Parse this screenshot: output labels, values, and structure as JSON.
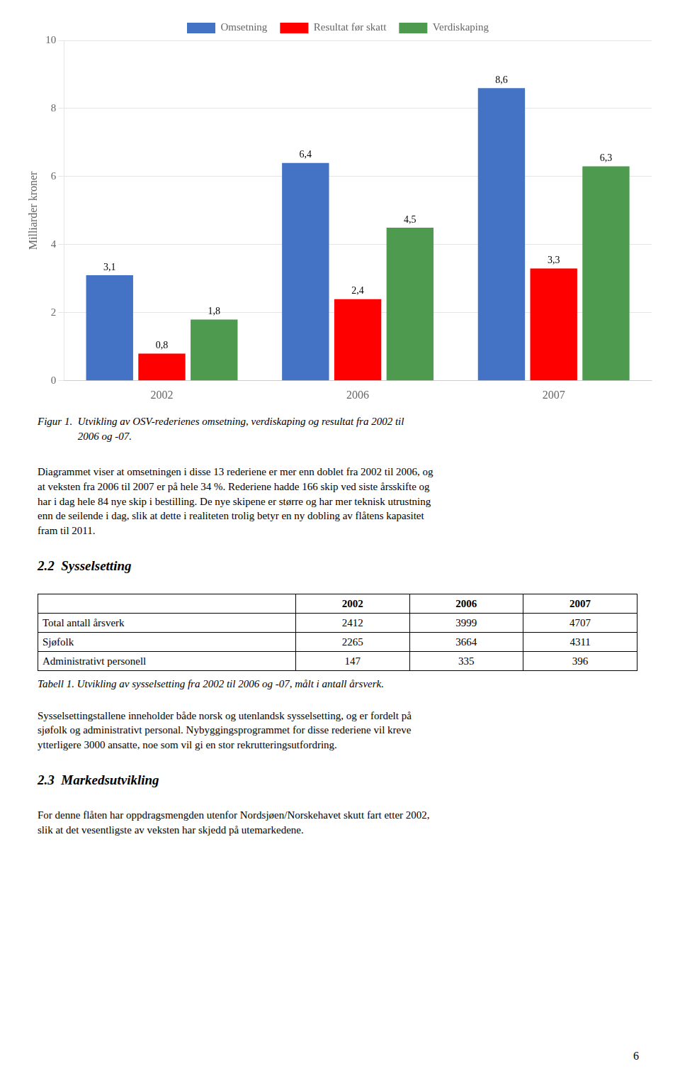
{
  "chart_data": {
    "type": "bar",
    "categories": [
      "2002",
      "2006",
      "2007"
    ],
    "series": [
      {
        "name": "Omsetning",
        "color": "#4472C4",
        "values": [
          3.1,
          6.4,
          8.6
        ],
        "value_labels": [
          "3,1",
          "6,4",
          "8,6"
        ]
      },
      {
        "name": "Resultat før skatt",
        "color": "#FF0000",
        "values": [
          0.8,
          2.4,
          3.3
        ],
        "value_labels": [
          "0,8",
          "2,4",
          "3,3"
        ]
      },
      {
        "name": "Verdiskaping",
        "color": "#4E9A4E",
        "values": [
          1.8,
          4.5,
          6.3
        ],
        "value_labels": [
          "1,8",
          "4,5",
          "6,3"
        ]
      }
    ],
    "ylabel": "Milliarder kroner",
    "ylim": [
      0,
      10
    ],
    "yticks": [
      0,
      2,
      4,
      6,
      8,
      10
    ],
    "grid": true,
    "legend": "top",
    "data_labels": true
  },
  "figure_caption": {
    "label": "Figur 1.",
    "text": "Utvikling av OSV-rederienes omsetning, verdiskaping og resultat fra 2002 til\n2006 og -07."
  },
  "paragraph1": "Diagrammet viser at omsetningen i disse 13 rederiene er mer enn doblet fra 2002 til 2006, og\nat veksten fra 2006 til 2007 er på hele 34 %. Rederiene hadde 166 skip ved siste årsskifte og\nhar i dag hele 84 nye skip i bestilling. De nye skipene er større og har mer teknisk utrustning\nenn de seilende i dag, slik at dette i realiteten trolig betyr en ny dobling av flåtens kapasitet\nfram til 2011.",
  "heading1": "2.2  Sysselsetting",
  "table": {
    "columns": [
      "2002",
      "2006",
      "2007"
    ],
    "rows": [
      {
        "label": "Total antall årsverk",
        "cells": [
          "2412",
          "3999",
          "4707"
        ]
      },
      {
        "label": "Sjøfolk",
        "cells": [
          "2265",
          "3664",
          "4311"
        ]
      },
      {
        "label": "Administrativt personell",
        "cells": [
          "147",
          "335",
          "396"
        ]
      }
    ]
  },
  "table_caption": {
    "label": "Tabell 1.",
    "text": "Utvikling av sysselsetting fra 2002 til 2006 og -07, målt i antall årsverk."
  },
  "paragraph2": "Sysselsettingstallene inneholder både norsk og utenlandsk sysselsetting, og er fordelt på\nsjøfolk og administrativt personal. Nybyggingsprogrammet for disse rederiene vil kreve\nytterligere 3000 ansatte, noe som vil gi en stor rekrutteringsutfordring.",
  "heading2": "2.3  Markedsutvikling",
  "paragraph3": "For denne flåten har oppdragsmengden utenfor Nordsjøen/Norskehavet skutt fart etter 2002,\nslik at det vesentligste av veksten har skjedd på utemarkedene.",
  "page_number": "6"
}
